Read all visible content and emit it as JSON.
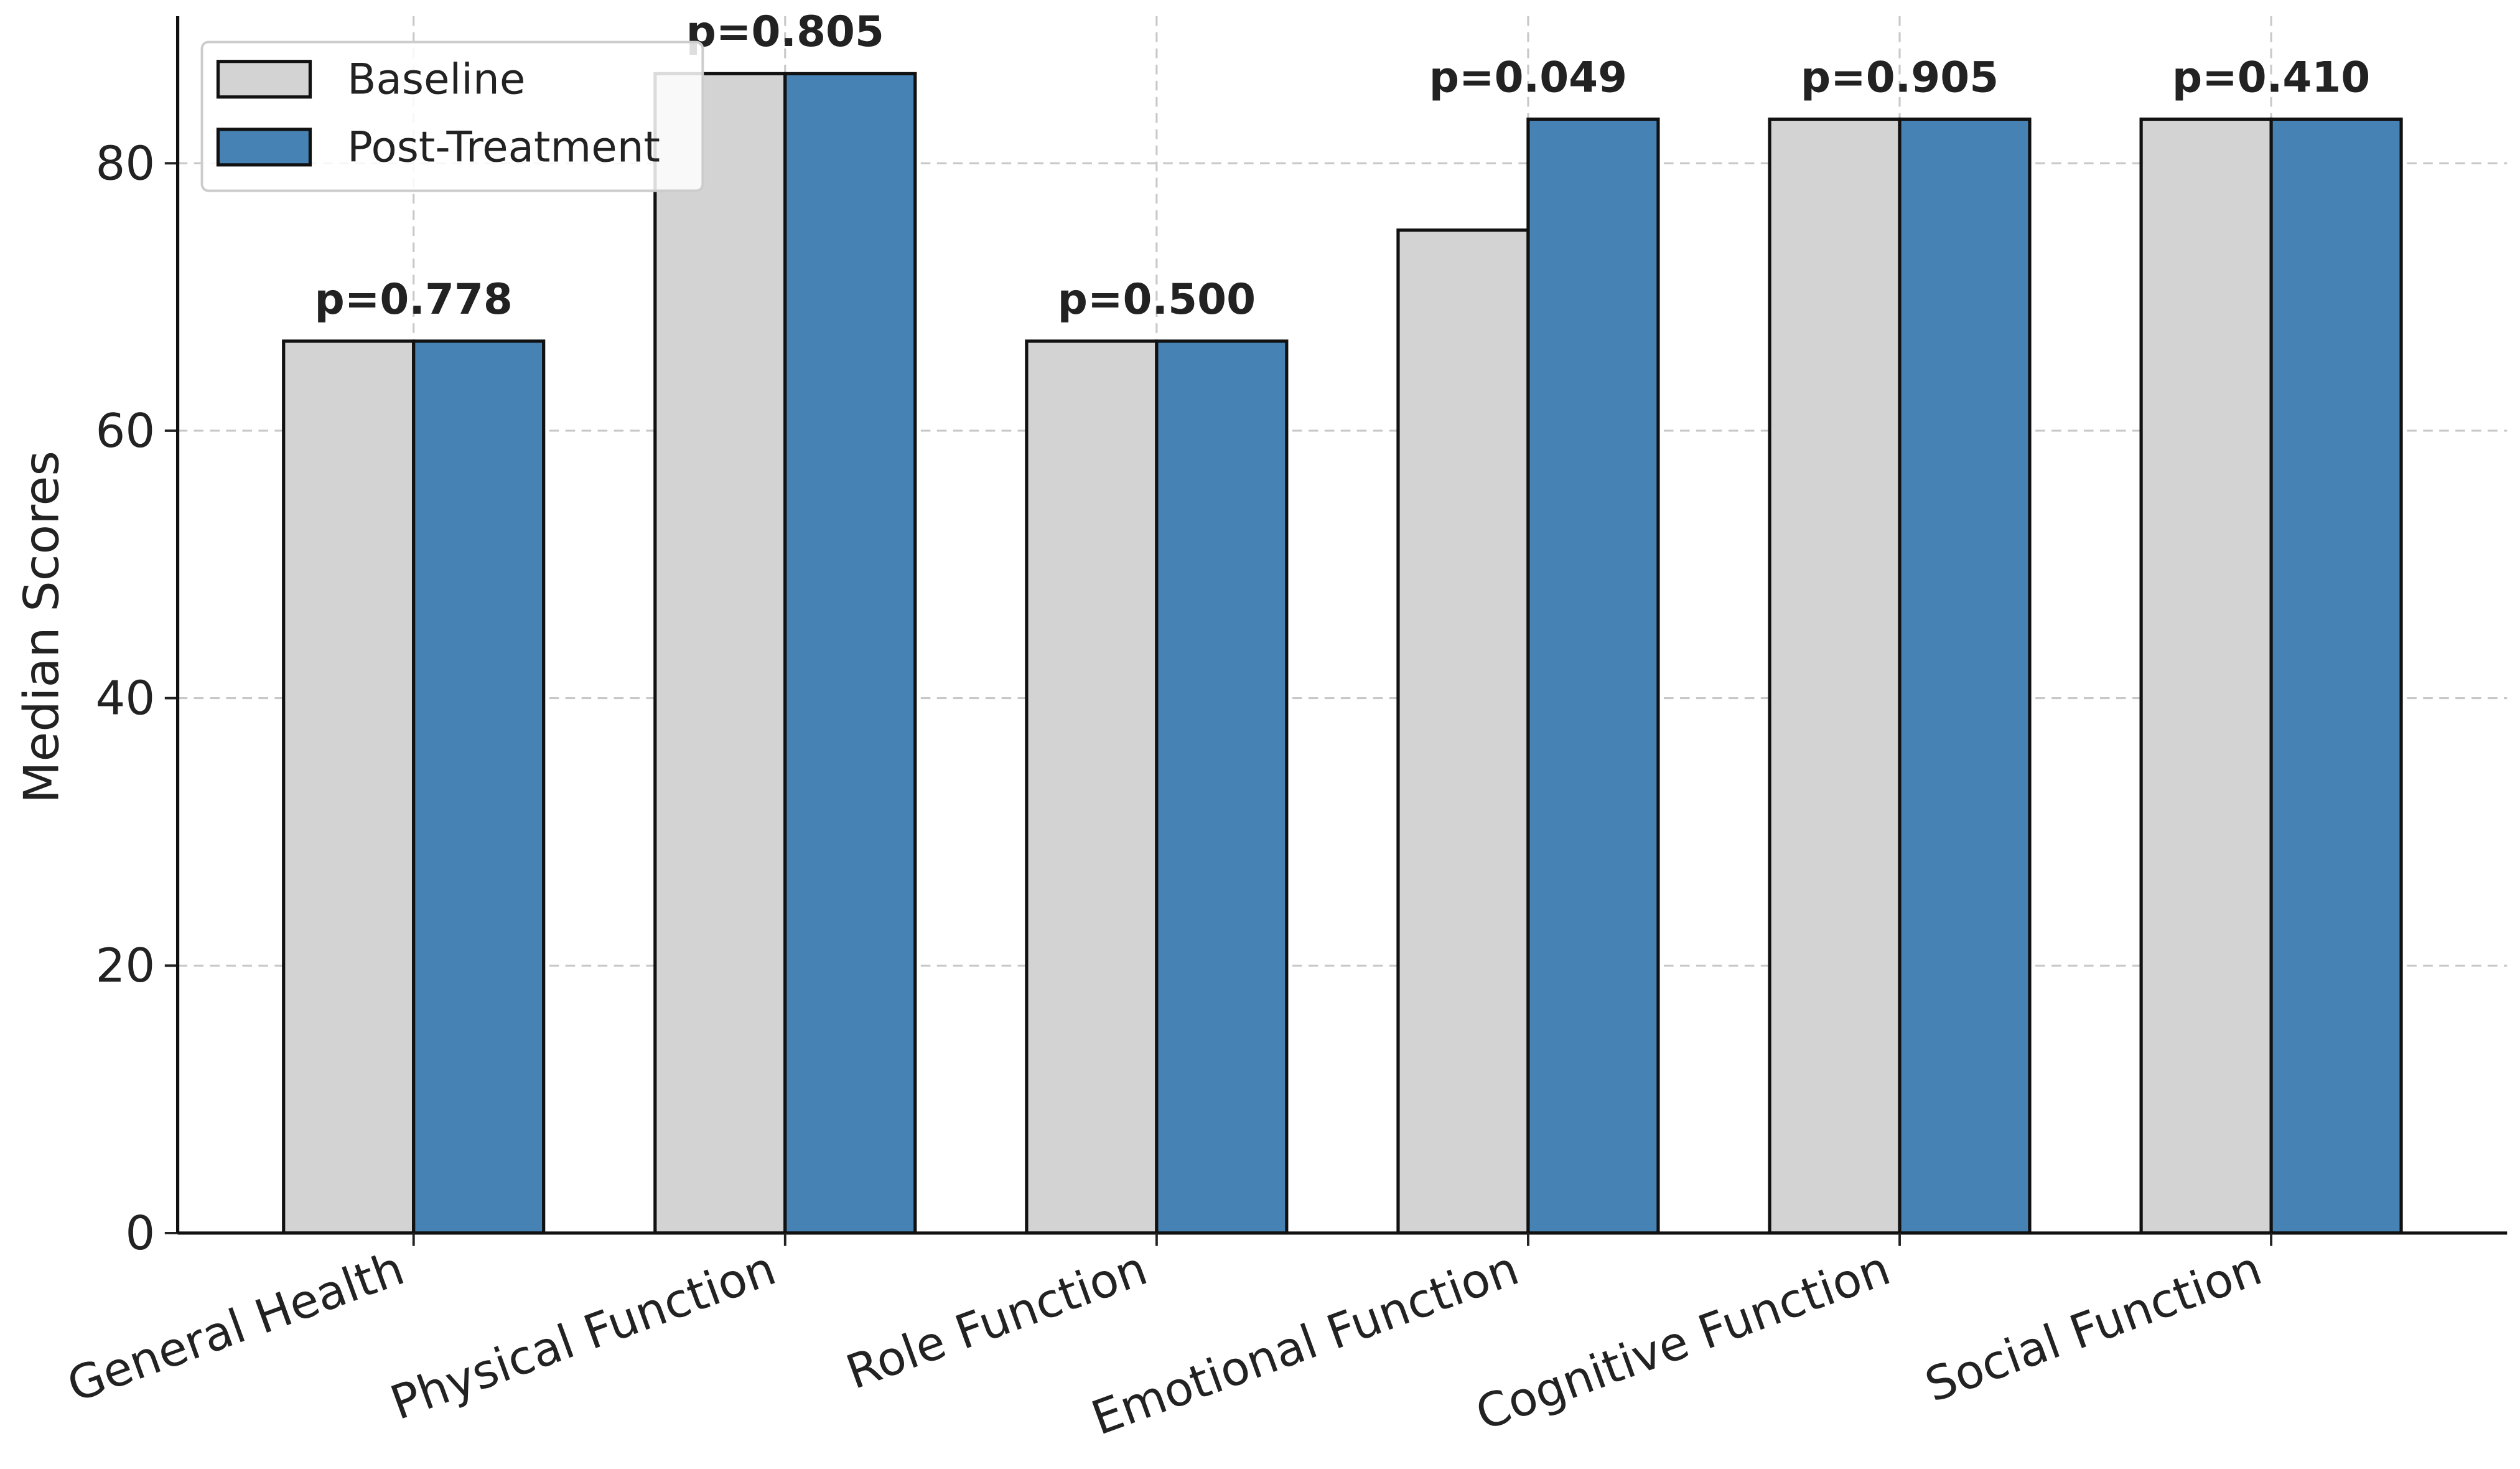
{
  "chart_data": {
    "type": "bar",
    "y_label": "Median Scores",
    "categories": [
      "General Health",
      "Physical Function",
      "Role Function",
      "Emotional Function",
      "Cognitive Function",
      "Social Function"
    ],
    "series": [
      {
        "name": "Baseline",
        "color": "#d3d3d3",
        "values": [
          66.7,
          86.7,
          66.7,
          75,
          83.3,
          83.3
        ]
      },
      {
        "name": "Post-Treatment",
        "color": "#4682b4",
        "values": [
          66.7,
          86.7,
          66.7,
          83.3,
          83.3,
          83.3
        ]
      }
    ],
    "annotations": [
      "p=0.778",
      "p=0.805",
      "p=0.500",
      "p=0.049",
      "p=0.905",
      "p=0.410"
    ],
    "ylim": [
      0,
      91
    ],
    "yticks": [
      0,
      20,
      40,
      60,
      80
    ],
    "grid": true,
    "legend": "upper left"
  }
}
